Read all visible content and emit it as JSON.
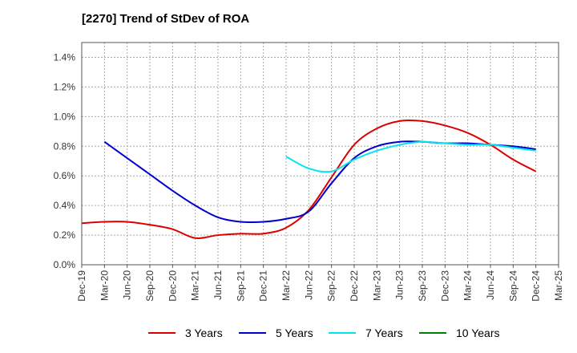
{
  "title": "[2270]  Trend of StDev of ROA",
  "colors": {
    "3y": "#dd0000",
    "5y": "#0000cc",
    "7y": "#00e5ee",
    "10y": "#008000",
    "grid": "#aaaaaa",
    "axis": "#555555"
  },
  "chart_data": {
    "type": "line",
    "title": "[2270]  Trend of StDev of ROA",
    "xlabel": "",
    "ylabel": "",
    "x": [
      "Dec-19",
      "Mar-20",
      "Jun-20",
      "Sep-20",
      "Dec-20",
      "Mar-21",
      "Jun-21",
      "Sep-21",
      "Dec-21",
      "Mar-22",
      "Jun-22",
      "Sep-22",
      "Dec-22",
      "Mar-23",
      "Jun-23",
      "Sep-23",
      "Dec-23",
      "Mar-24",
      "Jun-24",
      "Sep-24",
      "Dec-24",
      "Mar-25"
    ],
    "y_ticks": [
      "0.0%",
      "0.2%",
      "0.4%",
      "0.6%",
      "0.8%",
      "1.0%",
      "1.2%",
      "1.4%"
    ],
    "ylim": [
      0,
      1.5
    ],
    "y_unit": "%",
    "grid": true,
    "legend_position": "bottom",
    "series": [
      {
        "name": "3 Years",
        "color_key": "3y",
        "values": [
          0.28,
          0.29,
          0.29,
          0.27,
          0.24,
          0.18,
          0.2,
          0.21,
          0.21,
          0.25,
          0.37,
          0.59,
          0.81,
          0.92,
          0.97,
          0.97,
          0.94,
          0.89,
          0.81,
          0.71,
          0.63,
          null
        ]
      },
      {
        "name": "5 Years",
        "color_key": "5y",
        "values": [
          null,
          0.83,
          0.72,
          0.61,
          0.5,
          0.4,
          0.32,
          0.29,
          0.29,
          0.31,
          0.36,
          0.55,
          0.72,
          0.8,
          0.83,
          0.83,
          0.82,
          0.82,
          0.81,
          0.8,
          0.78,
          null
        ]
      },
      {
        "name": "7 Years",
        "color_key": "7y",
        "values": [
          null,
          null,
          null,
          null,
          null,
          null,
          null,
          null,
          null,
          0.73,
          0.65,
          0.63,
          0.71,
          0.77,
          0.81,
          0.83,
          0.82,
          0.81,
          0.81,
          0.79,
          0.77,
          null
        ]
      },
      {
        "name": "10 Years",
        "color_key": "10y",
        "values": [
          null,
          null,
          null,
          null,
          null,
          null,
          null,
          null,
          null,
          null,
          null,
          null,
          null,
          null,
          null,
          null,
          null,
          null,
          null,
          null,
          null,
          null
        ]
      }
    ]
  }
}
